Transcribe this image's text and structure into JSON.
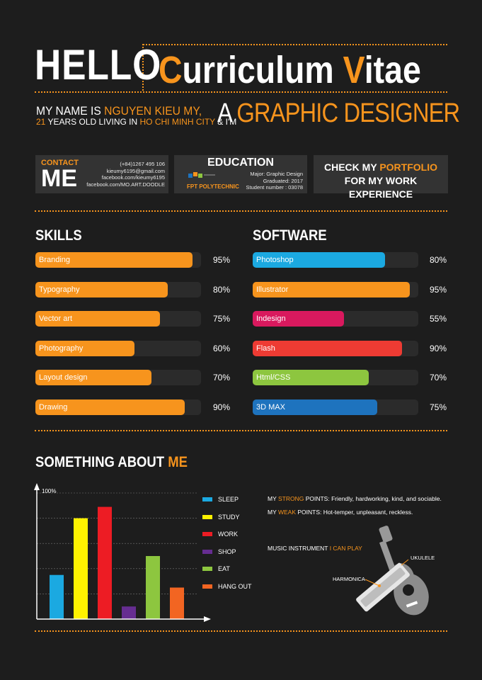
{
  "header": {
    "hello": "HELLO",
    "cv_c": "C",
    "cv_urriculum": "urriculum ",
    "cv_v": "V",
    "cv_itae": "itae",
    "intro_line1_pre": "MY NAME IS ",
    "intro_line1_name": "NGUYEN KIEU MY,",
    "intro_line2_age": "21",
    "intro_line2_mid": " YEARS OLD LIVING IN ",
    "intro_line2_city": "HO CHI MINH CITY",
    "intro_line2_end": " & I'M",
    "intro_a": "A ",
    "intro_role": "GRAPHIC DESIGNER"
  },
  "contact": {
    "heading": "CONTACT",
    "me": "ME",
    "phone": "(+84)1267 495 106",
    "email": "kieumy6195@gmail.com",
    "facebook1": "facebook.com/kieumy6195",
    "facebook2": "facebook.com/MO.ART.DOODLE"
  },
  "education": {
    "title": "EDUCATION",
    "school": "FPT POLYTECHNIC",
    "major": "Major: Graphic Design",
    "graduated": "Graduated: 2017",
    "student_number": "Student number : 03078"
  },
  "portfolio": {
    "line1_pre": "CHECK MY ",
    "line1_highlight": "PORTFOLIO",
    "line2": "FOR MY WORK EXPERIENCE"
  },
  "skills": {
    "title": "SKILLS",
    "items": [
      {
        "label": "Branding",
        "pct_text": "95%",
        "value": 95
      },
      {
        "label": "Typography",
        "pct_text": "80%",
        "value": 80
      },
      {
        "label": "Vector art",
        "pct_text": "75%",
        "value": 75
      },
      {
        "label": "Photography",
        "pct_text": "60%",
        "value": 60
      },
      {
        "label": "Layout design",
        "pct_text": "70%",
        "value": 70
      },
      {
        "label": "Drawing",
        "pct_text": "90%",
        "value": 90
      }
    ],
    "color": "#f7941d"
  },
  "software": {
    "title": "SOFTWARE",
    "items": [
      {
        "label": "Photoshop",
        "pct_text": "80%",
        "value": 80,
        "color": "#1ba9e1"
      },
      {
        "label": "Illustrator",
        "pct_text": "95%",
        "value": 95,
        "color": "#f7941d"
      },
      {
        "label": "Indesign",
        "pct_text": "55%",
        "value": 55,
        "color": "#d9195e"
      },
      {
        "label": "Flash",
        "pct_text": "90%",
        "value": 90,
        "color": "#ee3b33"
      },
      {
        "label": "Html/CSS",
        "pct_text": "70%",
        "value": 70,
        "color": "#8dc63f"
      },
      {
        "label": "3D MAX",
        "pct_text": "75%",
        "value": 75,
        "color": "#1e73be"
      }
    ]
  },
  "about": {
    "title_pre": "SOMETHING ABOUT ",
    "title_me": "ME",
    "strong_pre": "MY ",
    "strong_word": "STRONG",
    "strong_rest": " POINTS: Friendly, hardworking, kind,  and sociable.",
    "weak_pre": "MY ",
    "weak_word": "WEAK",
    "weak_rest": " POINTS: Hot-temper, unpleasant, reckless.",
    "music_pre": "MUSIC INSTRUMENT ",
    "music_highlight": "I CAN PLAY",
    "ukulele": "UKULELE",
    "harmonica": "HARMONICA"
  },
  "chart_data": {
    "type": "bar",
    "ylim": [
      0,
      100
    ],
    "ytick_label": "100%",
    "categories": [
      "SLEEP",
      "STUDY",
      "WORK",
      "SHOP",
      "EAT",
      "HANG OUT"
    ],
    "values": [
      35,
      80,
      89,
      10,
      50,
      25
    ],
    "colors": [
      "#1ba9e1",
      "#fff200",
      "#ed1c24",
      "#662d91",
      "#8dc63f",
      "#f26522"
    ],
    "gridlines": true,
    "legend": "right"
  }
}
